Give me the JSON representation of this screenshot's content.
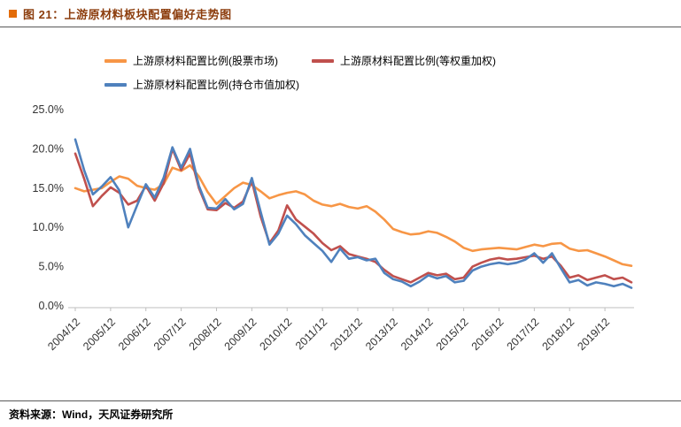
{
  "header": {
    "title": "图 21：上游原材料板块配置偏好走势图",
    "title_color": "#8C3D0D",
    "accent_color": "#E36C09"
  },
  "footer": {
    "source": "资料来源：Wind，天风证券研究所"
  },
  "chart_data": {
    "type": "line",
    "title": "图 21：上游原材料板块配置偏好走势图",
    "xlabel": "",
    "ylabel": "",
    "ylim": [
      0,
      25
    ],
    "grid": false,
    "legend_position": "top",
    "y_tick_values": [
      0,
      5,
      10,
      15,
      20,
      25
    ],
    "y_tick_labels": [
      "0.0%",
      "5.0%",
      "10.0%",
      "15.0%",
      "20.0%",
      "25.0%"
    ],
    "x_tick_every": 4,
    "x": [
      "2004/12",
      "2005/03",
      "2005/06",
      "2005/09",
      "2005/12",
      "2006/03",
      "2006/06",
      "2006/09",
      "2006/12",
      "2007/03",
      "2007/06",
      "2007/09",
      "2007/12",
      "2008/03",
      "2008/06",
      "2008/09",
      "2008/12",
      "2009/03",
      "2009/06",
      "2009/09",
      "2009/12",
      "2010/03",
      "2010/06",
      "2010/09",
      "2010/12",
      "2011/03",
      "2011/06",
      "2011/09",
      "2011/12",
      "2012/03",
      "2012/06",
      "2012/09",
      "2012/12",
      "2013/03",
      "2013/06",
      "2013/09",
      "2013/12",
      "2014/03",
      "2014/06",
      "2014/09",
      "2014/12",
      "2015/03",
      "2015/06",
      "2015/09",
      "2015/12",
      "2016/03",
      "2016/06",
      "2016/09",
      "2016/12",
      "2017/03",
      "2017/06",
      "2017/09",
      "2017/12",
      "2018/03",
      "2018/06",
      "2018/09",
      "2018/12",
      "2019/03",
      "2019/06",
      "2019/09",
      "2019/12",
      "2020/03",
      "2020/06",
      "2020/09"
    ],
    "series": [
      {
        "name": "上游原材料配置比例(股票市场)",
        "color": "#F79646",
        "values": [
          15.0,
          14.6,
          14.8,
          15.0,
          15.8,
          16.5,
          16.2,
          15.3,
          15.0,
          14.8,
          15.5,
          17.6,
          17.2,
          17.9,
          16.5,
          14.5,
          13.0,
          14.0,
          15.0,
          15.7,
          15.4,
          14.6,
          13.7,
          14.1,
          14.4,
          14.6,
          14.2,
          13.4,
          12.9,
          12.7,
          13.0,
          12.6,
          12.4,
          12.7,
          12.0,
          11.0,
          9.8,
          9.4,
          9.1,
          9.2,
          9.5,
          9.3,
          8.8,
          8.2,
          7.4,
          7.0,
          7.2,
          7.3,
          7.4,
          7.3,
          7.2,
          7.5,
          7.8,
          7.6,
          7.9,
          8.0,
          7.3,
          7.0,
          7.1,
          6.7,
          6.3,
          5.8,
          5.3,
          5.1
        ]
      },
      {
        "name": "上游原材料配置比例(等权重加权)",
        "color": "#C0504D",
        "values": [
          19.4,
          16.2,
          12.7,
          14.0,
          15.1,
          14.4,
          12.9,
          13.4,
          15.3,
          13.4,
          15.6,
          20.0,
          17.3,
          19.4,
          15.0,
          12.3,
          12.2,
          13.1,
          12.5,
          13.3,
          15.9,
          11.4,
          8.0,
          9.6,
          12.8,
          11.0,
          10.1,
          9.2,
          8.0,
          7.1,
          7.6,
          6.6,
          6.3,
          6.0,
          5.6,
          4.6,
          3.8,
          3.4,
          3.0,
          3.6,
          4.2,
          3.9,
          4.1,
          3.4,
          3.6,
          5.0,
          5.5,
          5.9,
          6.1,
          5.9,
          6.0,
          6.2,
          6.4,
          6.0,
          6.3,
          5.1,
          3.6,
          3.9,
          3.3,
          3.6,
          3.9,
          3.4,
          3.6,
          3.0
        ]
      },
      {
        "name": "上游原材料配置比例(持仓市值加权)",
        "color": "#4F81BD",
        "values": [
          21.2,
          17.3,
          14.2,
          15.2,
          16.4,
          14.7,
          10.0,
          12.8,
          15.5,
          13.8,
          16.3,
          20.2,
          17.6,
          20.0,
          15.3,
          12.5,
          12.4,
          13.6,
          12.3,
          13.0,
          16.3,
          12.0,
          7.8,
          9.2,
          11.5,
          10.4,
          9.0,
          8.0,
          7.0,
          5.6,
          7.3,
          6.0,
          6.2,
          5.8,
          6.0,
          4.2,
          3.4,
          3.1,
          2.5,
          3.1,
          3.9,
          3.5,
          3.8,
          3.0,
          3.2,
          4.5,
          5.0,
          5.3,
          5.5,
          5.3,
          5.5,
          5.9,
          6.7,
          5.5,
          6.7,
          4.8,
          3.0,
          3.3,
          2.6,
          3.0,
          2.8,
          2.5,
          2.8,
          2.3
        ]
      }
    ]
  }
}
